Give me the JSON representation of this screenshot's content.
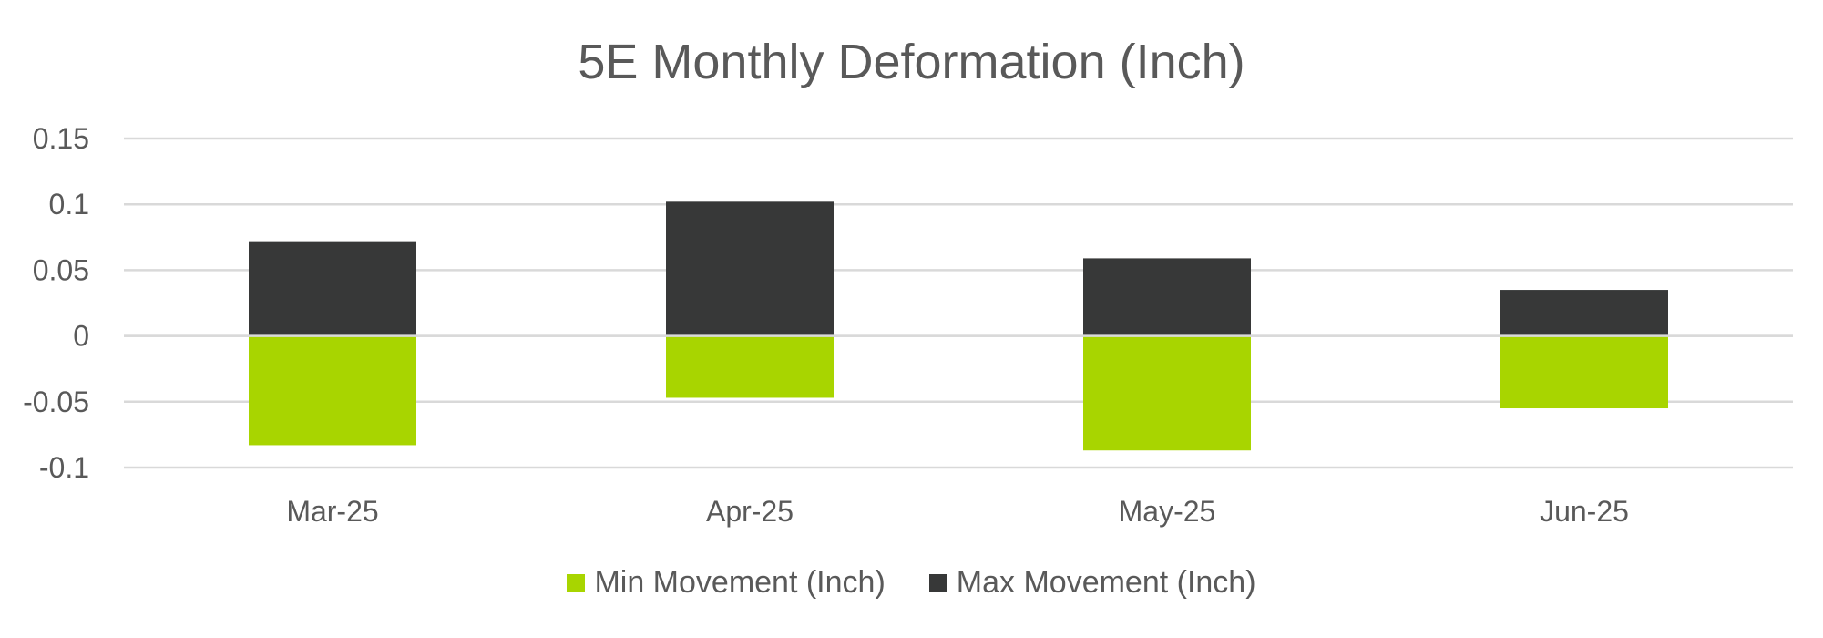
{
  "chart_data": {
    "type": "bar",
    "title": "5E Monthly Deformation (Inch)",
    "categories": [
      "Mar-25",
      "Apr-25",
      "May-25",
      "Jun-25"
    ],
    "series": [
      {
        "name": "Min Movement (Inch)",
        "values": [
          -0.083,
          -0.047,
          -0.087,
          -0.055
        ],
        "color": "#a8d500"
      },
      {
        "name": "Max Movement (Inch)",
        "values": [
          0.072,
          0.102,
          0.059,
          0.035
        ],
        "color": "#373838"
      }
    ],
    "stacked": true,
    "ylim": [
      -0.1,
      0.15
    ],
    "yticks": [
      0.15,
      0.1,
      0.05,
      0,
      -0.05,
      -0.1
    ],
    "ytick_labels": [
      "0.15",
      "0.1",
      "0.05",
      "0",
      "-0.05",
      "-0.1"
    ],
    "grid": true,
    "legend_position": "bottom"
  }
}
